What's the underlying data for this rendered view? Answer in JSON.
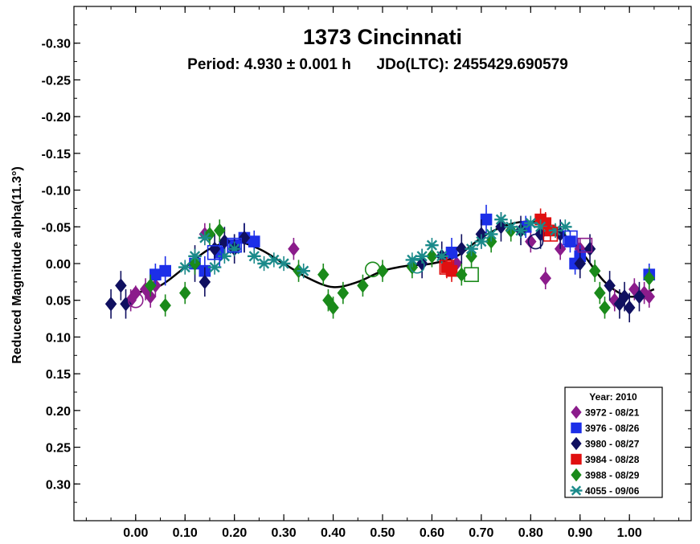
{
  "chart_data": {
    "type": "scatter",
    "title": "1373 Cincinnati",
    "subtitle": "Period: 4.930 ± 0.001 h      JDo(LTC): 2455429.690579",
    "xlabel": "",
    "ylabel": "Reduced Magnitude alpha(11.3°)",
    "xlim": [
      -0.125,
      1.125
    ],
    "ylim": [
      -0.35,
      0.35
    ],
    "y_inverted": true,
    "x_ticks": [
      "0.00",
      "0.10",
      "0.20",
      "0.30",
      "0.40",
      "0.50",
      "0.60",
      "0.70",
      "0.80",
      "0.90",
      "1.00"
    ],
    "x_tick_values": [
      0,
      0.1,
      0.2,
      0.3,
      0.4,
      0.5,
      0.6,
      0.7,
      0.8,
      0.9,
      1.0
    ],
    "y_ticks": [
      "-0.30",
      "-0.25",
      "-0.20",
      "-0.15",
      "-0.10",
      "-0.05",
      "0.00",
      "0.05",
      "0.10",
      "0.15",
      "0.20",
      "0.25",
      "0.30"
    ],
    "y_tick_values": [
      -0.3,
      -0.25,
      -0.2,
      -0.15,
      -0.1,
      -0.05,
      0,
      0.05,
      0.1,
      0.15,
      0.2,
      0.25,
      0.3
    ],
    "grid": false,
    "legend": {
      "placement": "bottom-right",
      "title": "Year: 2010",
      "entries": [
        "3972 - 08/21",
        "3976 - 08/26",
        "3980 - 08/27",
        "3984 - 08/28",
        "3988 - 08/29",
        "4055 - 09/06"
      ]
    },
    "fit_curve": {
      "x": [
        0.0,
        0.05,
        0.1,
        0.15,
        0.2,
        0.25,
        0.3,
        0.35,
        0.4,
        0.45,
        0.5,
        0.55,
        0.6,
        0.65,
        0.7,
        0.75,
        0.8,
        0.85,
        0.9,
        0.95,
        1.0,
        1.05
      ],
      "y": [
        0.04,
        0.03,
        0.005,
        -0.02,
        -0.03,
        -0.02,
        0.0,
        0.02,
        0.032,
        0.025,
        0.01,
        0.003,
        0.0,
        -0.01,
        -0.035,
        -0.052,
        -0.057,
        -0.048,
        -0.018,
        0.025,
        0.045,
        0.035
      ]
    },
    "series": [
      {
        "name": "3972 - 08/21",
        "color": "#8b1c8b",
        "marker": "diamond",
        "x": [
          -0.01,
          0.0,
          0.02,
          0.03,
          0.04,
          0.14,
          0.32,
          0.65,
          0.8,
          0.83,
          0.86,
          0.9,
          0.97,
          1.01,
          1.03,
          1.04
        ],
        "y": [
          0.05,
          0.04,
          0.035,
          0.045,
          0.03,
          -0.04,
          -0.02,
          0.0,
          -0.03,
          0.02,
          -0.02,
          -0.02,
          0.05,
          0.035,
          0.04,
          0.045
        ],
        "err": [
          0.015,
          0.01,
          0.015,
          0.015,
          0.015,
          0.015,
          0.015,
          0.015,
          0.015,
          0.015,
          0.015,
          0.015,
          0.015,
          0.015,
          0.015,
          0.015
        ]
      },
      {
        "name": "3976 - 08/26",
        "color": "#1c2fe8",
        "marker": "square",
        "x": [
          0.04,
          0.06,
          0.12,
          0.14,
          0.17,
          0.2,
          0.22,
          0.24,
          0.64,
          0.71,
          0.79,
          0.88,
          0.89,
          0.9,
          1.04
        ],
        "y": [
          0.015,
          0.01,
          0.0,
          0.01,
          -0.015,
          -0.025,
          -0.035,
          -0.03,
          -0.015,
          -0.06,
          -0.05,
          -0.03,
          0.0,
          -0.01,
          0.015
        ],
        "err": [
          0.015,
          0.02,
          0.015,
          0.02,
          0.02,
          0.015,
          0.02,
          0.015,
          0.02,
          0.02,
          0.015,
          0.015,
          0.015,
          0.015,
          0.015
        ]
      },
      {
        "name": "3980 - 08/27",
        "color": "#101060",
        "marker": "diamond",
        "x": [
          -0.05,
          -0.03,
          -0.02,
          0.12,
          0.14,
          0.16,
          0.18,
          0.2,
          0.22,
          0.58,
          0.62,
          0.66,
          0.7,
          0.74,
          0.78,
          0.82,
          0.86,
          0.9,
          0.92,
          0.96,
          0.98,
          0.99,
          1.0,
          1.02
        ],
        "y": [
          0.055,
          0.03,
          0.055,
          0.0,
          0.025,
          -0.02,
          -0.03,
          -0.02,
          -0.035,
          0.0,
          -0.01,
          -0.02,
          -0.04,
          -0.05,
          -0.045,
          -0.04,
          -0.04,
          0.0,
          -0.02,
          0.03,
          0.055,
          0.045,
          0.06,
          0.045
        ],
        "err": [
          0.02,
          0.02,
          0.02,
          0.025,
          0.02,
          0.02,
          0.02,
          0.02,
          0.02,
          0.02,
          0.02,
          0.02,
          0.02,
          0.02,
          0.02,
          0.02,
          0.02,
          0.02,
          0.02,
          0.02,
          0.02,
          0.02,
          0.02,
          0.02
        ]
      },
      {
        "name": "3984 - 08/28",
        "color": "#e01010",
        "marker": "square",
        "x": [
          0.63,
          0.64,
          0.82,
          0.83,
          0.84
        ],
        "y": [
          0.005,
          0.01,
          -0.06,
          -0.055,
          -0.045
        ],
        "err": [
          0.015,
          0.015,
          0.015,
          0.015,
          0.015
        ]
      },
      {
        "name": "3988 - 08/29",
        "color": "#1a8a1a",
        "marker": "diamond",
        "x": [
          0.03,
          0.06,
          0.1,
          0.12,
          0.15,
          0.17,
          0.33,
          0.38,
          0.39,
          0.4,
          0.42,
          0.46,
          0.5,
          0.56,
          0.6,
          0.66,
          0.68,
          0.72,
          0.76,
          0.93,
          0.94,
          0.95,
          1.04
        ],
        "y": [
          0.03,
          0.057,
          0.04,
          0.0,
          -0.04,
          -0.045,
          0.01,
          0.015,
          0.05,
          0.06,
          0.04,
          0.03,
          0.01,
          0.005,
          -0.01,
          0.015,
          -0.01,
          -0.03,
          -0.045,
          0.01,
          0.04,
          0.06,
          0.02
        ],
        "err": [
          0.015,
          0.015,
          0.015,
          0.015,
          0.015,
          0.015,
          0.015,
          0.015,
          0.015,
          0.015,
          0.015,
          0.015,
          0.015,
          0.015,
          0.015,
          0.015,
          0.015,
          0.015,
          0.015,
          0.015,
          0.015,
          0.015,
          0.015
        ]
      },
      {
        "name": "4055 - 09/06",
        "color": "#1a8a8a",
        "marker": "asterisk",
        "x": [
          0.1,
          0.12,
          0.14,
          0.16,
          0.18,
          0.2,
          0.24,
          0.26,
          0.28,
          0.3,
          0.34,
          0.56,
          0.58,
          0.6,
          0.62,
          0.68,
          0.7,
          0.72,
          0.74,
          0.76,
          0.78,
          0.8,
          0.82,
          0.85,
          0.87
        ],
        "y": [
          0.005,
          -0.01,
          -0.035,
          0.005,
          -0.01,
          -0.02,
          -0.01,
          0.0,
          -0.005,
          0.0,
          0.01,
          -0.005,
          -0.01,
          -0.025,
          -0.01,
          -0.02,
          -0.03,
          -0.04,
          -0.06,
          -0.05,
          -0.045,
          -0.055,
          -0.05,
          -0.045,
          -0.05
        ],
        "err": [
          0.01,
          0.01,
          0.01,
          0.01,
          0.01,
          0.01,
          0.01,
          0.01,
          0.01,
          0.01,
          0.01,
          0.01,
          0.01,
          0.01,
          0.01,
          0.01,
          0.01,
          0.01,
          0.01,
          0.01,
          0.01,
          0.01,
          0.01,
          0.01,
          0.01
        ]
      }
    ],
    "highlight_markers": [
      {
        "series": "3972 - 08/21",
        "shape": "circle",
        "x": 0.0,
        "y": 0.05
      },
      {
        "series": "3976 - 08/26",
        "shape": "square",
        "x": 0.16,
        "y": -0.015
      },
      {
        "series": "3976 - 08/26",
        "shape": "square",
        "x": 0.2,
        "y": -0.025
      },
      {
        "series": "3976 - 08/26",
        "shape": "square",
        "x": 0.88,
        "y": -0.035
      },
      {
        "series": "3972 - 08/21",
        "shape": "square",
        "x": 0.91,
        "y": -0.025
      },
      {
        "series": "3984 - 08/28",
        "shape": "square",
        "x": 0.63,
        "y": 0.005
      },
      {
        "series": "3984 - 08/28",
        "shape": "square",
        "x": 0.84,
        "y": -0.04
      },
      {
        "series": "3988 - 08/29",
        "shape": "square",
        "x": 0.68,
        "y": 0.015
      },
      {
        "series": "3988 - 08/29",
        "shape": "circle",
        "x": 0.48,
        "y": 0.008
      },
      {
        "series": "4055 - 09/06",
        "shape": "circle",
        "x": 0.57,
        "y": 0.003
      },
      {
        "series": "3980 - 08/27",
        "shape": "circle",
        "x": 0.81,
        "y": -0.03
      }
    ]
  }
}
